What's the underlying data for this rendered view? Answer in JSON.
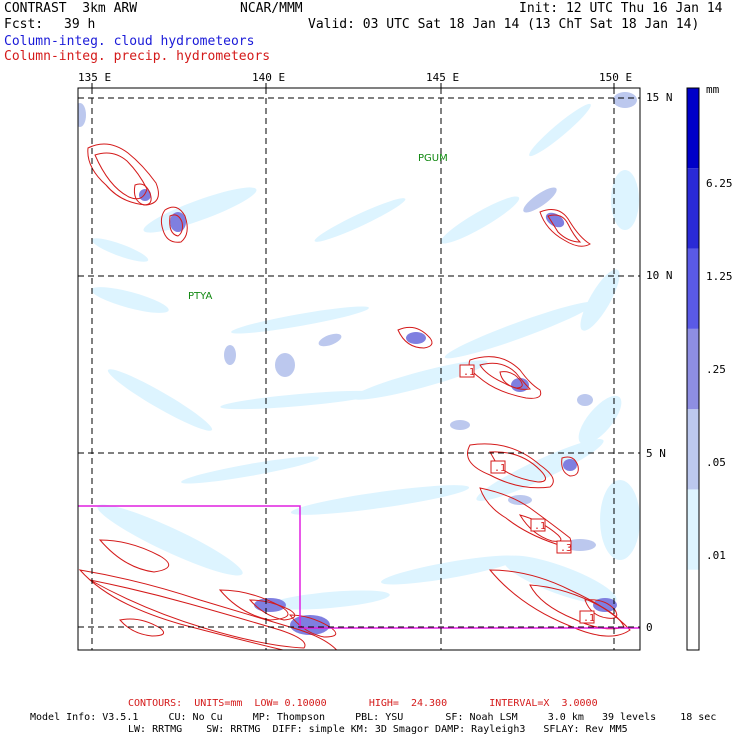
{
  "header": {
    "model_name": "CONTRAST  3km ARW",
    "org": "NCAR/MMM",
    "init": "Init: 12 UTC Thu 16 Jan 14",
    "fcst_label": "Fcst:",
    "fcst_value": "39 h",
    "valid": "Valid: 03 UTC Sat 18 Jan 14 (13 ChT Sat 18 Jan 14)",
    "field1": "Column-integ. cloud hydrometeors",
    "field2": "Column-integ. precip. hydrometeors"
  },
  "axes": {
    "lon_labels": [
      "135 E",
      "140 E",
      "145 E",
      "150 E"
    ],
    "lat_labels": [
      "15 N",
      "10 N",
      "5 N",
      "0"
    ]
  },
  "stations": [
    "PGUM",
    "PTYA"
  ],
  "contour_labels": [
    ".1",
    ".1",
    ".1",
    ".3",
    ".1"
  ],
  "colorbar": {
    "units": "mm",
    "levels": [
      "6.25",
      "1.25",
      ".25",
      ".05",
      ".01"
    ],
    "colors": [
      "#ffffff",
      "#ddf4ff",
      "#bcc8ee",
      "#8e8ee2",
      "#5a5ae6",
      "#2a2ad6",
      "#0000c8"
    ]
  },
  "footer": {
    "contours": "CONTOURS:  UNITS=mm  LOW= 0.10000       HIGH=  24.300       INTERVAL=X  3.0000",
    "model_line1": "Model Info: V3.5.1     CU: No Cu     MP: Thompson     PBL: YSU       SF: Noah LSM     3.0 km   39 levels    18 sec",
    "model_line2": "LW: RRTMG    SW: RRTMG  DIFF: simple KM: 3D Smagor DAMP: Rayleigh3   SFLAY: Rev MM5"
  },
  "colors": {
    "cloud_text": "#1a1ad8",
    "precip_contour": "#d41a1a",
    "subdomain_box": "#e020e0",
    "station_label": "#118811"
  }
}
